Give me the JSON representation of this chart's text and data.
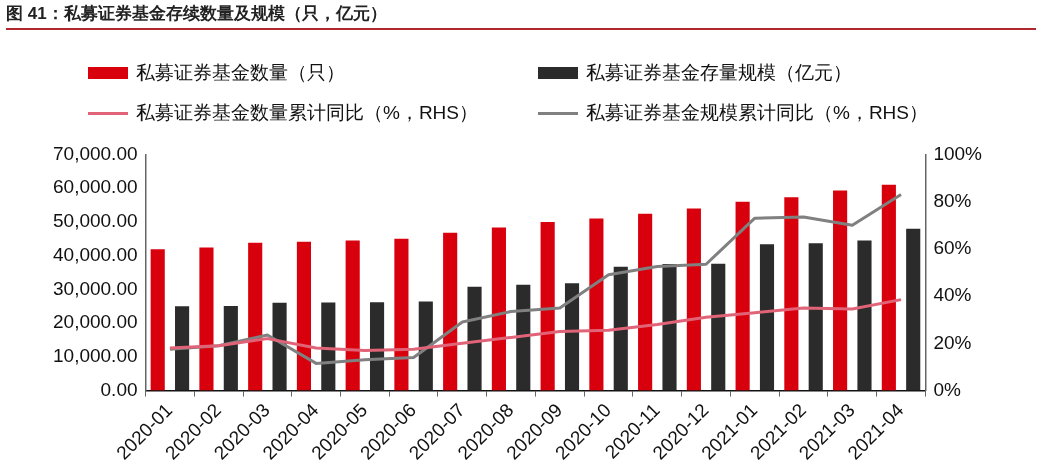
{
  "chart_data": {
    "type": "bar",
    "title": "图 41：私募证券基金存续数量及规模（只，亿元）",
    "categories": [
      "2020-01",
      "2020-02",
      "2020-03",
      "2020-04",
      "2020-05",
      "2020-06",
      "2020-07",
      "2020-08",
      "2020-09",
      "2020-10",
      "2020-11",
      "2020-12",
      "2021-01",
      "2021-02",
      "2021-03",
      "2021-04"
    ],
    "series": [
      {
        "name": "私募证券基金数量（只）",
        "color": "#d9000d",
        "values": [
          41900,
          42400,
          43800,
          44100,
          44500,
          45000,
          46800,
          48300,
          50000,
          51000,
          52400,
          54000,
          56000,
          57300,
          59300,
          61000
        ]
      },
      {
        "name": "私募证券基金存量规模（亿元）",
        "color": "#2b2b2b",
        "values": [
          25000,
          25100,
          26000,
          26100,
          26200,
          26400,
          30800,
          31400,
          31800,
          36700,
          37500,
          37600,
          43400,
          43700,
          44500,
          48000
        ]
      },
      {
        "name": "私募证券基金数量累计同比（%，RHS）",
        "type": "line",
        "axis": "y2",
        "color": "#e06377",
        "values": [
          18,
          19,
          22,
          18,
          17,
          17.5,
          20,
          22.5,
          25,
          25.5,
          28,
          31,
          33,
          35,
          34.5,
          38.5
        ]
      },
      {
        "name": "私募证券基金规模累计同比（%，RHS）",
        "type": "line",
        "axis": "y2",
        "color": "#808080",
        "values": [
          17.5,
          19,
          23.5,
          11.5,
          13,
          14,
          29,
          33.5,
          35,
          49,
          52.5,
          53.5,
          73,
          73.5,
          70,
          83
        ]
      }
    ],
    "ylim": [
      0,
      70000
    ],
    "yticks": [
      {
        "value": 0,
        "label": "0.00"
      },
      {
        "value": 10000,
        "label": "10,000.00"
      },
      {
        "value": 20000,
        "label": "20,000.00"
      },
      {
        "value": 30000,
        "label": "30,000.00"
      },
      {
        "value": 40000,
        "label": "40,000.00"
      },
      {
        "value": 50000,
        "label": "50,000.00"
      },
      {
        "value": 60000,
        "label": "60,000.00"
      },
      {
        "value": 70000,
        "label": "70,000.00"
      }
    ],
    "y2lim": [
      0,
      100
    ],
    "y2ticks": [
      {
        "value": 0,
        "label": "0%"
      },
      {
        "value": 20,
        "label": "20%"
      },
      {
        "value": 40,
        "label": "40%"
      },
      {
        "value": 60,
        "label": "60%"
      },
      {
        "value": 80,
        "label": "80%"
      },
      {
        "value": 100,
        "label": "100%"
      }
    ],
    "legend": "top",
    "grid": false,
    "marker": "none",
    "line_style": "solid"
  }
}
